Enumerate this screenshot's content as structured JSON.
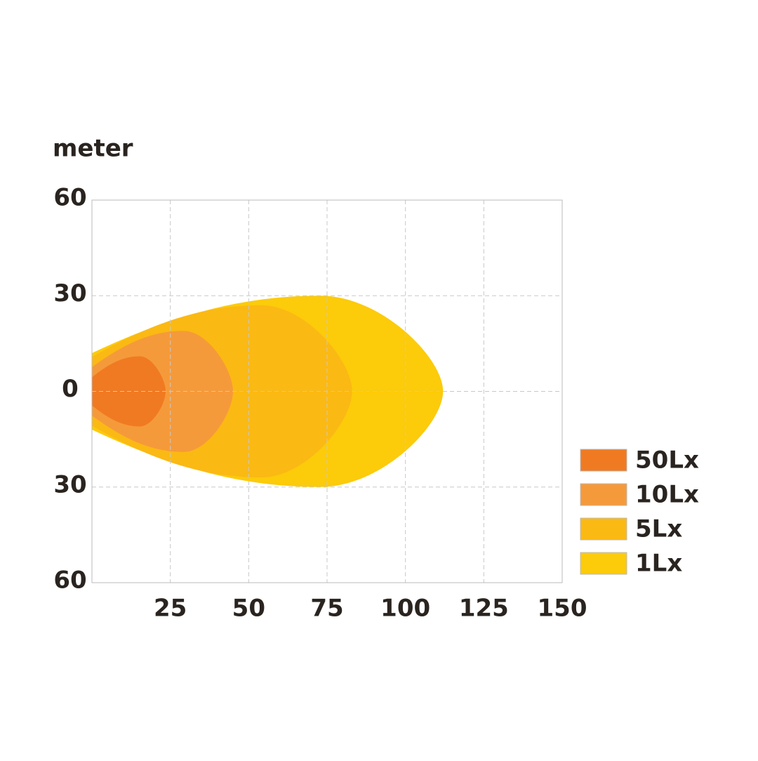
{
  "chart_data": {
    "type": "beam",
    "y_label": "meter",
    "xlim": [
      0,
      150
    ],
    "xticks": [
      25,
      50,
      75,
      100,
      125,
      150
    ],
    "ylim": [
      -60,
      60
    ],
    "yticks": [
      {
        "value": 60,
        "label": "60"
      },
      {
        "value": 30,
        "label": "30"
      },
      0,
      {
        "value": -30,
        "label": "30"
      },
      {
        "value": -60,
        "label": "60"
      }
    ],
    "grid": true,
    "legend": "right",
    "series": [
      {
        "name": "50Lx",
        "color": "#f07a22",
        "reach": 23.5,
        "half_width": 11
      },
      {
        "name": "10Lx",
        "color": "#f59a3a",
        "reach": 45,
        "half_width": 19
      },
      {
        "name": "5Lx",
        "color": "#fbb914",
        "reach": 83,
        "half_width": 27
      },
      {
        "name": "1Lx",
        "color": "#fccb0a",
        "reach": 112,
        "half_width": 30
      }
    ]
  }
}
